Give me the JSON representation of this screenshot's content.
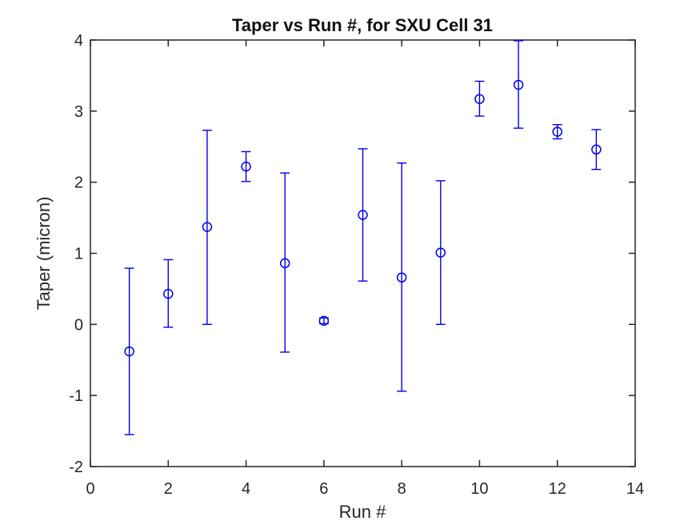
{
  "chart_data": {
    "type": "scatter",
    "subtype": "errorbar",
    "title": "Taper vs Run #, for SXU Cell 31",
    "xlabel": "Run #",
    "ylabel": "Taper (micron)",
    "xlim": [
      0,
      14
    ],
    "ylim": [
      -2,
      4
    ],
    "x_ticks": [
      0,
      2,
      4,
      6,
      8,
      10,
      12,
      14
    ],
    "y_ticks": [
      -2,
      -1,
      0,
      1,
      2,
      3,
      4
    ],
    "grid": false,
    "box": true,
    "legend": "none",
    "marker": "open-circle",
    "series_color": "#0000EE",
    "axis_color": "#262626",
    "background_color": "#FFFFFF",
    "points": [
      {
        "x": 1,
        "y": -0.38,
        "y_lo": -1.55,
        "y_hi": 0.79
      },
      {
        "x": 2,
        "y": 0.43,
        "y_lo": -0.04,
        "y_hi": 0.91
      },
      {
        "x": 3,
        "y": 1.37,
        "y_lo": 0.0,
        "y_hi": 2.73
      },
      {
        "x": 4,
        "y": 2.22,
        "y_lo": 2.01,
        "y_hi": 2.43
      },
      {
        "x": 5,
        "y": 0.86,
        "y_lo": -0.39,
        "y_hi": 2.13
      },
      {
        "x": 6,
        "y": 0.05,
        "y_lo": 0.01,
        "y_hi": 0.09
      },
      {
        "x": 7,
        "y": 1.54,
        "y_lo": 0.61,
        "y_hi": 2.47
      },
      {
        "x": 8,
        "y": 0.66,
        "y_lo": -0.94,
        "y_hi": 2.27
      },
      {
        "x": 9,
        "y": 1.01,
        "y_lo": 0.0,
        "y_hi": 2.02
      },
      {
        "x": 10,
        "y": 3.17,
        "y_lo": 2.93,
        "y_hi": 3.42
      },
      {
        "x": 11,
        "y": 3.37,
        "y_lo": 2.76,
        "y_hi": 3.99
      },
      {
        "x": 12,
        "y": 2.71,
        "y_lo": 2.61,
        "y_hi": 2.81
      },
      {
        "x": 13,
        "y": 2.46,
        "y_lo": 2.18,
        "y_hi": 2.74
      }
    ]
  }
}
